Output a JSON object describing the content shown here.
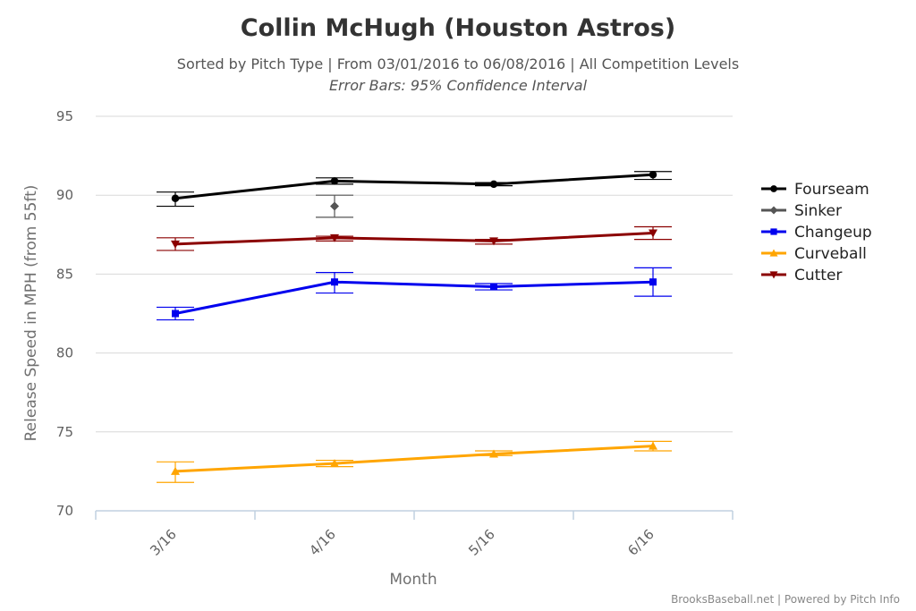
{
  "chart_data": {
    "type": "line",
    "title": "Collin McHugh (Houston Astros)",
    "subtitle": "Sorted by Pitch Type | From 03/01/2016 to 06/08/2016 | All Competition Levels",
    "subtitle2": "Error Bars: 95% Confidence Interval",
    "xlabel": "Month",
    "ylabel": "Release Speed in MPH (from 55ft)",
    "categories": [
      "3/16",
      "4/16",
      "5/16",
      "6/16"
    ],
    "ylim": [
      70,
      95
    ],
    "yticks": [
      70,
      75,
      80,
      85,
      90,
      95
    ],
    "grid": true,
    "legend_position": "right",
    "credits": "BrooksBaseball.net | Powered by Pitch Info",
    "series": [
      {
        "name": "Fourseam",
        "color": "#000000",
        "marker": "circle",
        "values": [
          89.8,
          90.9,
          90.7,
          91.3
        ],
        "error_low": [
          89.3,
          90.7,
          90.6,
          91.0
        ],
        "error_high": [
          90.2,
          91.1,
          90.8,
          91.5
        ]
      },
      {
        "name": "Sinker",
        "color": "#555555",
        "marker": "diamond",
        "values": [
          null,
          89.3,
          null,
          null
        ],
        "error_low": [
          null,
          88.6,
          null,
          null
        ],
        "error_high": [
          null,
          90.0,
          null,
          null
        ]
      },
      {
        "name": "Changeup",
        "color": "#0000ee",
        "marker": "square",
        "values": [
          82.5,
          84.5,
          84.2,
          84.5
        ],
        "error_low": [
          82.1,
          83.8,
          84.0,
          83.6
        ],
        "error_high": [
          82.9,
          85.1,
          84.4,
          85.4
        ]
      },
      {
        "name": "Curveball",
        "color": "#ffa500",
        "marker": "triangle",
        "values": [
          72.5,
          73.0,
          73.6,
          74.1
        ],
        "error_low": [
          71.8,
          72.8,
          73.5,
          73.8
        ],
        "error_high": [
          73.1,
          73.2,
          73.8,
          74.4
        ]
      },
      {
        "name": "Cutter",
        "color": "#8b0000",
        "marker": "triangle-down",
        "values": [
          86.9,
          87.3,
          87.1,
          87.6
        ],
        "error_low": [
          86.5,
          87.1,
          86.9,
          87.2
        ],
        "error_high": [
          87.3,
          87.4,
          87.2,
          88.0
        ]
      }
    ]
  }
}
